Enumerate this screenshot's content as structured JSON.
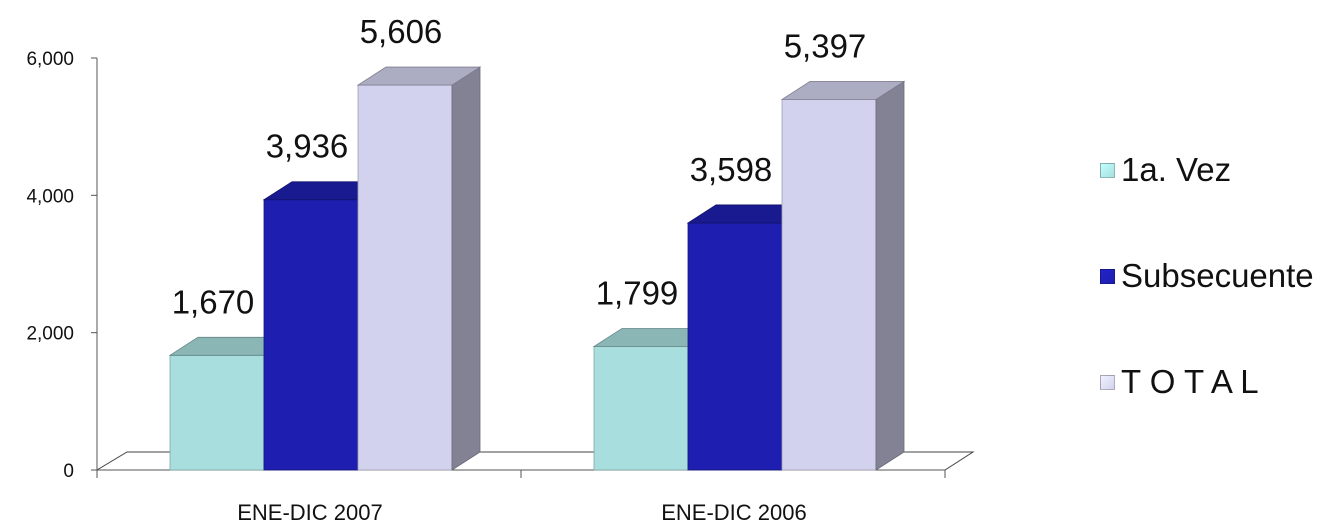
{
  "chart_data": {
    "type": "bar",
    "categories": [
      "ENE-DIC 2007",
      "ENE-DIC 2006"
    ],
    "series": [
      {
        "name": "1a. Vez",
        "values": [
          1670,
          1799
        ],
        "color": "#a8dede"
      },
      {
        "name": "Subsecuente",
        "values": [
          3936,
          3598
        ],
        "color": "#1e1eb0"
      },
      {
        "name": "T O T A L",
        "values": [
          5606,
          5397
        ],
        "color": "#d2d2ee"
      }
    ],
    "data_labels": [
      [
        "1,670",
        "1,799"
      ],
      [
        "3,936",
        "3,598"
      ],
      [
        "5,606",
        "5,397"
      ]
    ],
    "yticks": [
      "0",
      "2,000",
      "4,000",
      "6,000"
    ],
    "ytick_values": [
      0,
      2000,
      4000,
      6000
    ],
    "ylim": [
      0,
      6000
    ],
    "legend_position": "right",
    "grid": false,
    "style": "3d-column"
  }
}
